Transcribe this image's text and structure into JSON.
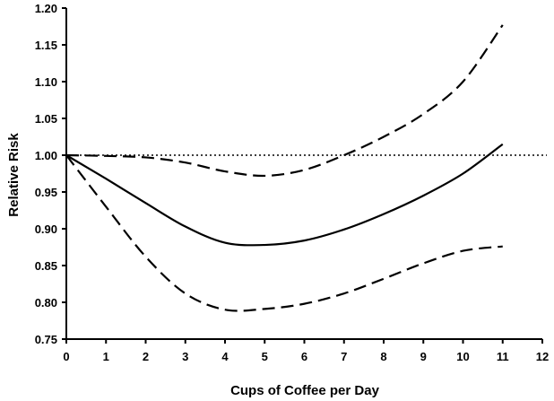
{
  "chart_data": {
    "type": "line",
    "title": "",
    "xlabel": "Cups of Coffee per Day",
    "ylabel": "Relative Risk",
    "xlim": [
      0,
      12
    ],
    "ylim": [
      0.75,
      1.2
    ],
    "xticks": [
      "0",
      "1",
      "2",
      "3",
      "4",
      "5",
      "6",
      "7",
      "8",
      "9",
      "10",
      "11",
      "12"
    ],
    "yticks": [
      "0.75",
      "0.80",
      "0.85",
      "0.90",
      "0.95",
      "1.00",
      "1.05",
      "1.10",
      "1.15",
      "1.20"
    ],
    "grid": false,
    "reference_line": {
      "y": 1.0,
      "style": "dotted"
    },
    "x": [
      0,
      1,
      2,
      3,
      4,
      5,
      6,
      7,
      8,
      9,
      10,
      11
    ],
    "series": [
      {
        "style": "solid",
        "values": [
          1.0,
          0.968,
          0.935,
          0.903,
          0.881,
          0.878,
          0.884,
          0.899,
          0.92,
          0.945,
          0.975,
          1.015
        ]
      },
      {
        "style": "dashed",
        "values": [
          1.0,
          0.999,
          0.997,
          0.99,
          0.978,
          0.972,
          0.98,
          1.0,
          1.025,
          1.056,
          1.1,
          1.177
        ]
      },
      {
        "style": "dashed",
        "values": [
          1.0,
          0.93,
          0.862,
          0.812,
          0.79,
          0.791,
          0.798,
          0.812,
          0.832,
          0.853,
          0.87,
          0.876
        ]
      }
    ],
    "color": "#000000"
  }
}
